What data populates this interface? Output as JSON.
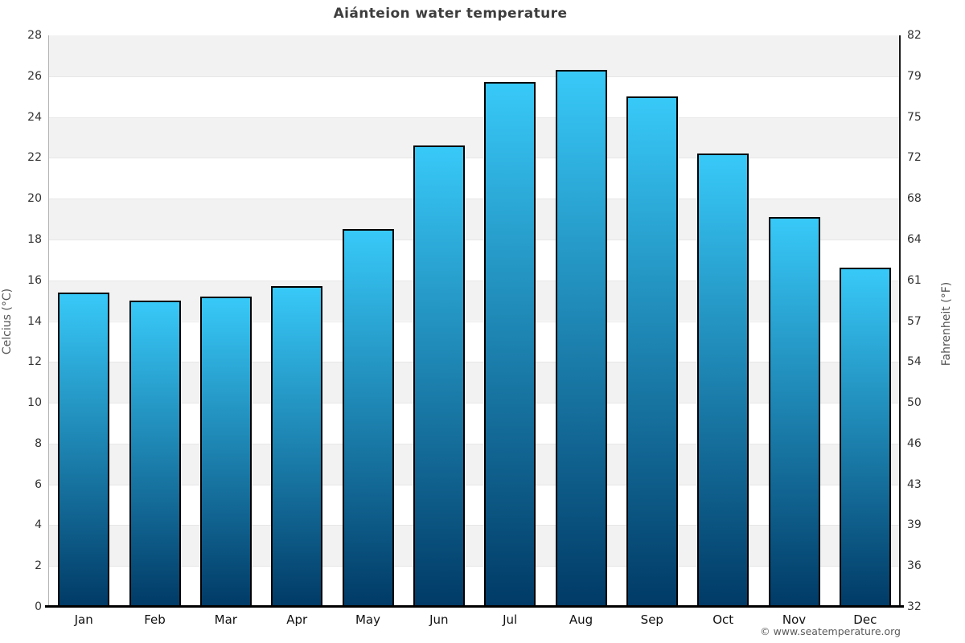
{
  "title": "Aiánteion water temperature",
  "footer": {
    "credit": "© www.seatemperature.org"
  },
  "axes": {
    "left_label": "Celcius (°C)",
    "right_label": "Fahrenheit (°F)"
  },
  "chart_data": {
    "type": "bar",
    "title": "Aiánteion water temperature",
    "categories": [
      "Jan",
      "Feb",
      "Mar",
      "Apr",
      "May",
      "Jun",
      "Jul",
      "Aug",
      "Sep",
      "Oct",
      "Nov",
      "Dec"
    ],
    "values": [
      15.4,
      15.0,
      15.2,
      15.7,
      18.5,
      22.6,
      25.7,
      26.3,
      25.0,
      22.2,
      19.1,
      16.6
    ],
    "xlabel": "",
    "ylabel": "Celcius (°C)",
    "ylabel_right": "Fahrenheit (°F)",
    "ylim": [
      0,
      28
    ],
    "yticks_celsius": [
      0,
      2,
      4,
      6,
      8,
      10,
      12,
      14,
      16,
      18,
      20,
      22,
      24,
      26,
      28
    ],
    "yticks_fahrenheit_labels": [
      "32",
      "36",
      "39",
      "43",
      "46",
      "50",
      "54",
      "57",
      "61",
      "64",
      "68",
      "72",
      "75",
      "79",
      "82"
    ],
    "grid": "alternating-horizontal-bands",
    "legend": "none",
    "colors": {
      "bar_gradient_top": "#38c9f8",
      "bar_gradient_bottom": "#013a66",
      "bar_border": "#000000",
      "band_fill": "#f2f2f2",
      "band_alt_fill": "#ffffff",
      "title_text": "#3d3d3d",
      "tick_text": "#333333",
      "axis_label_text": "#555555",
      "footer_text": "#5a5a5a"
    }
  }
}
